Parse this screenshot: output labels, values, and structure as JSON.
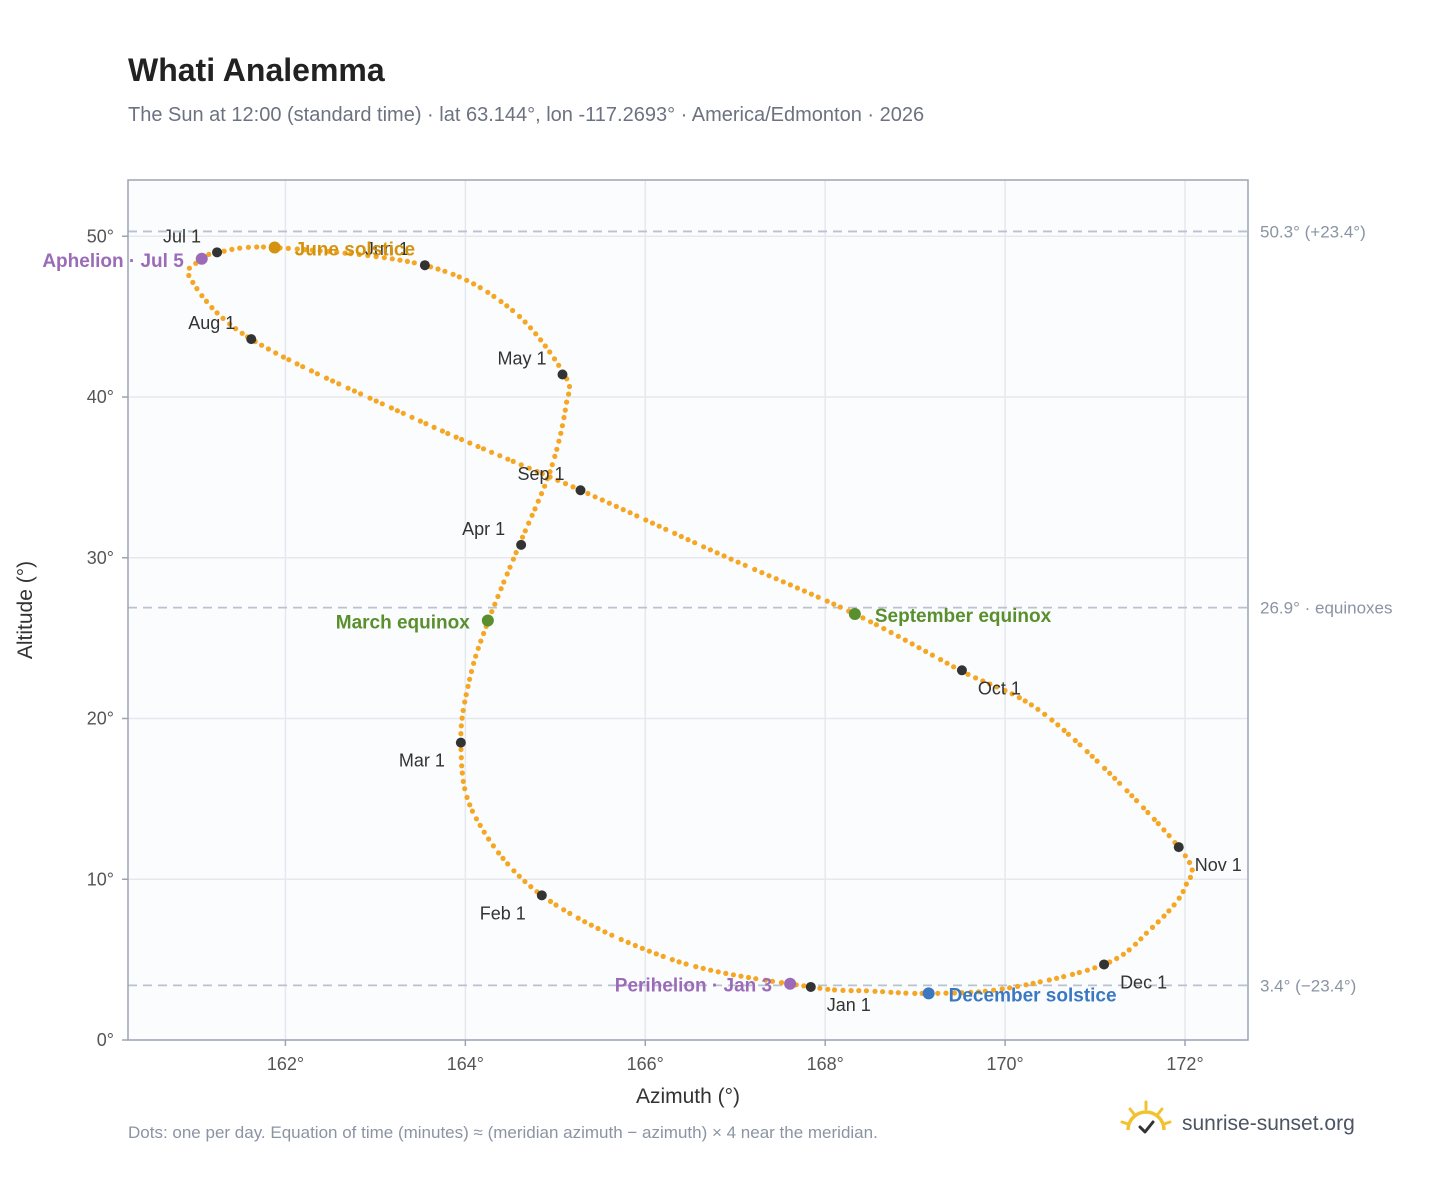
{
  "title": "Whati Analemma",
  "subtitle": "The Sun at 12:00 (standard time) · lat 63.144°, lon -117.2693° · America/Edmonton · 2026",
  "footnote": "Dots: one per day. Equation of time (minutes) ≈ (meridian azimuth − azimuth) × 4 near the meridian.",
  "brand": {
    "text": "sunrise-sunset.org",
    "icon": "sun-logo-icon"
  },
  "colors": {
    "curve": "#f5a623",
    "month_dot": "#333333",
    "solstice_june": "#d4930f",
    "solstice_december": "#3b78c2",
    "equinox": "#5a8f2e",
    "apsis": "#9b6bb8",
    "ref_line": "#b8c2d0",
    "plot_bg": "#fafcfe",
    "grid": "#e5e9ef"
  },
  "chart_data": {
    "type": "scatter",
    "xlabel": "Azimuth (°)",
    "ylabel": "Altitude (°)",
    "xlim": [
      160.25,
      172.7
    ],
    "ylim": [
      0,
      53.5
    ],
    "x_ticks": [
      162,
      164,
      166,
      168,
      170,
      172
    ],
    "x_tick_labels": [
      "162°",
      "164°",
      "166°",
      "168°",
      "170°",
      "172°"
    ],
    "y_ticks": [
      0,
      10,
      20,
      30,
      40,
      50
    ],
    "y_tick_labels": [
      "0°",
      "10°",
      "20°",
      "30°",
      "40°",
      "50°"
    ],
    "grid": true,
    "reference_lines": [
      {
        "y": 50.3,
        "label": "50.3° (+23.4°)"
      },
      {
        "y": 26.9,
        "label": "26.9° · equinoxes"
      },
      {
        "y": 3.4,
        "label": "3.4° (−23.4°)"
      }
    ],
    "path_keypoints": [
      {
        "x": 167.84,
        "y": 3.3
      },
      {
        "x": 166.3,
        "y": 5.0
      },
      {
        "x": 164.85,
        "y": 9.0
      },
      {
        "x": 164.1,
        "y": 14.0
      },
      {
        "x": 163.95,
        "y": 18.5
      },
      {
        "x": 164.05,
        "y": 22.5
      },
      {
        "x": 164.25,
        "y": 26.0
      },
      {
        "x": 164.6,
        "y": 30.8
      },
      {
        "x": 164.95,
        "y": 35.5
      },
      {
        "x": 165.12,
        "y": 39.5
      },
      {
        "x": 165.1,
        "y": 41.4
      },
      {
        "x": 164.5,
        "y": 45.5
      },
      {
        "x": 163.55,
        "y": 48.2
      },
      {
        "x": 161.88,
        "y": 49.3
      },
      {
        "x": 161.25,
        "y": 49.0
      },
      {
        "x": 161.05,
        "y": 48.5
      },
      {
        "x": 160.95,
        "y": 47.3
      },
      {
        "x": 161.62,
        "y": 43.6
      },
      {
        "x": 163.5,
        "y": 38.5
      },
      {
        "x": 165.28,
        "y": 34.2
      },
      {
        "x": 166.8,
        "y": 30.3
      },
      {
        "x": 168.33,
        "y": 26.5
      },
      {
        "x": 169.5,
        "y": 23.0
      },
      {
        "x": 170.5,
        "y": 20.0
      },
      {
        "x": 171.93,
        "y": 12.0
      },
      {
        "x": 172.0,
        "y": 9.5
      },
      {
        "x": 171.6,
        "y": 6.8
      },
      {
        "x": 171.1,
        "y": 4.7
      },
      {
        "x": 170.0,
        "y": 3.2
      },
      {
        "x": 169.15,
        "y": 2.9
      },
      {
        "x": 168.5,
        "y": 3.05
      },
      {
        "x": 167.84,
        "y": 3.3
      }
    ],
    "month_markers": [
      {
        "label": "Jan 1",
        "x": 167.84,
        "y": 3.3,
        "anchor": "below-right"
      },
      {
        "label": "Feb 1",
        "x": 164.85,
        "y": 9.0,
        "anchor": "below-left"
      },
      {
        "label": "Mar 1",
        "x": 163.95,
        "y": 18.5,
        "anchor": "below-left"
      },
      {
        "label": "Apr 1",
        "x": 164.62,
        "y": 30.8,
        "anchor": "above-left"
      },
      {
        "label": "May 1",
        "x": 165.08,
        "y": 41.4,
        "anchor": "above-left"
      },
      {
        "label": "Jun 1",
        "x": 163.55,
        "y": 48.2,
        "anchor": "above-left"
      },
      {
        "label": "Jul 1",
        "x": 161.24,
        "y": 49.0,
        "anchor": "above-left"
      },
      {
        "label": "Aug 1",
        "x": 161.62,
        "y": 43.6,
        "anchor": "above-left"
      },
      {
        "label": "Sep 1",
        "x": 165.28,
        "y": 34.2,
        "anchor": "above-left"
      },
      {
        "label": "Oct 1",
        "x": 169.52,
        "y": 23.0,
        "anchor": "below-right"
      },
      {
        "label": "Nov 1",
        "x": 171.93,
        "y": 12.0,
        "anchor": "below-right"
      },
      {
        "label": "Dec 1",
        "x": 171.1,
        "y": 4.7,
        "anchor": "below-right"
      }
    ],
    "events": [
      {
        "label": "June solstice",
        "x": 161.88,
        "y": 49.3,
        "color": "#d4930f",
        "side": "right"
      },
      {
        "label": "Aphelion · Jul 5",
        "x": 161.07,
        "y": 48.6,
        "color": "#9b6bb8",
        "side": "left"
      },
      {
        "label": "March equinox",
        "x": 164.25,
        "y": 26.1,
        "color": "#5a8f2e",
        "side": "left"
      },
      {
        "label": "September equinox",
        "x": 168.33,
        "y": 26.5,
        "color": "#5a8f2e",
        "side": "right"
      },
      {
        "label": "Perihelion · Jan 3",
        "x": 167.61,
        "y": 3.5,
        "color": "#9b6bb8",
        "side": "left"
      },
      {
        "label": "December solstice",
        "x": 169.15,
        "y": 2.9,
        "color": "#3b78c2",
        "side": "right"
      }
    ]
  }
}
